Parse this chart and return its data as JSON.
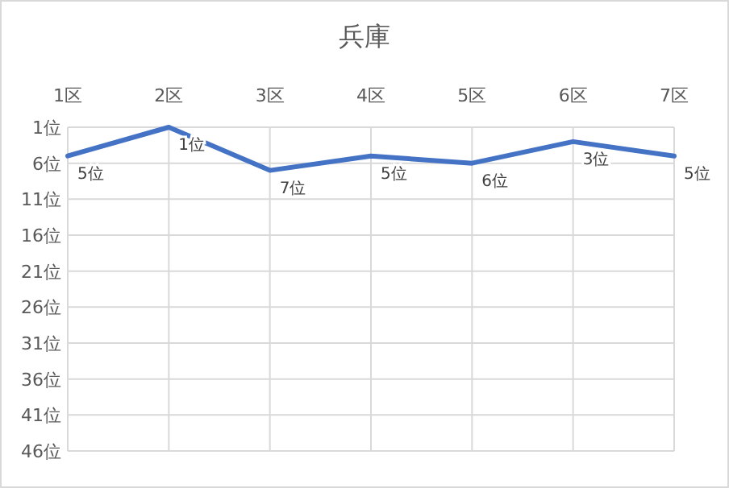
{
  "chart_data": {
    "type": "line",
    "title": "兵庫",
    "categories": [
      "1区",
      "2区",
      "3区",
      "4区",
      "5区",
      "6区",
      "7区"
    ],
    "series": [
      {
        "color": "#4472c4",
        "values": [
          5,
          1,
          7,
          5,
          6,
          3,
          5
        ],
        "value_labels": [
          "5位",
          "1位",
          "7位",
          "5位",
          "6位",
          "3位",
          "5位"
        ]
      }
    ],
    "ylim": [
      46,
      1
    ],
    "yticks": [
      {
        "value": 1,
        "label": "1位"
      },
      {
        "value": 6,
        "label": "6位"
      },
      {
        "value": 11,
        "label": "11位"
      },
      {
        "value": 16,
        "label": "16位"
      },
      {
        "value": 21,
        "label": "21位"
      },
      {
        "value": 26,
        "label": "26位"
      },
      {
        "value": 31,
        "label": "31位"
      },
      {
        "value": 36,
        "label": "36位"
      },
      {
        "value": 41,
        "label": "41位"
      },
      {
        "value": 46,
        "label": "46位"
      }
    ],
    "grid": true,
    "marker": "none",
    "line_style": "solid"
  }
}
